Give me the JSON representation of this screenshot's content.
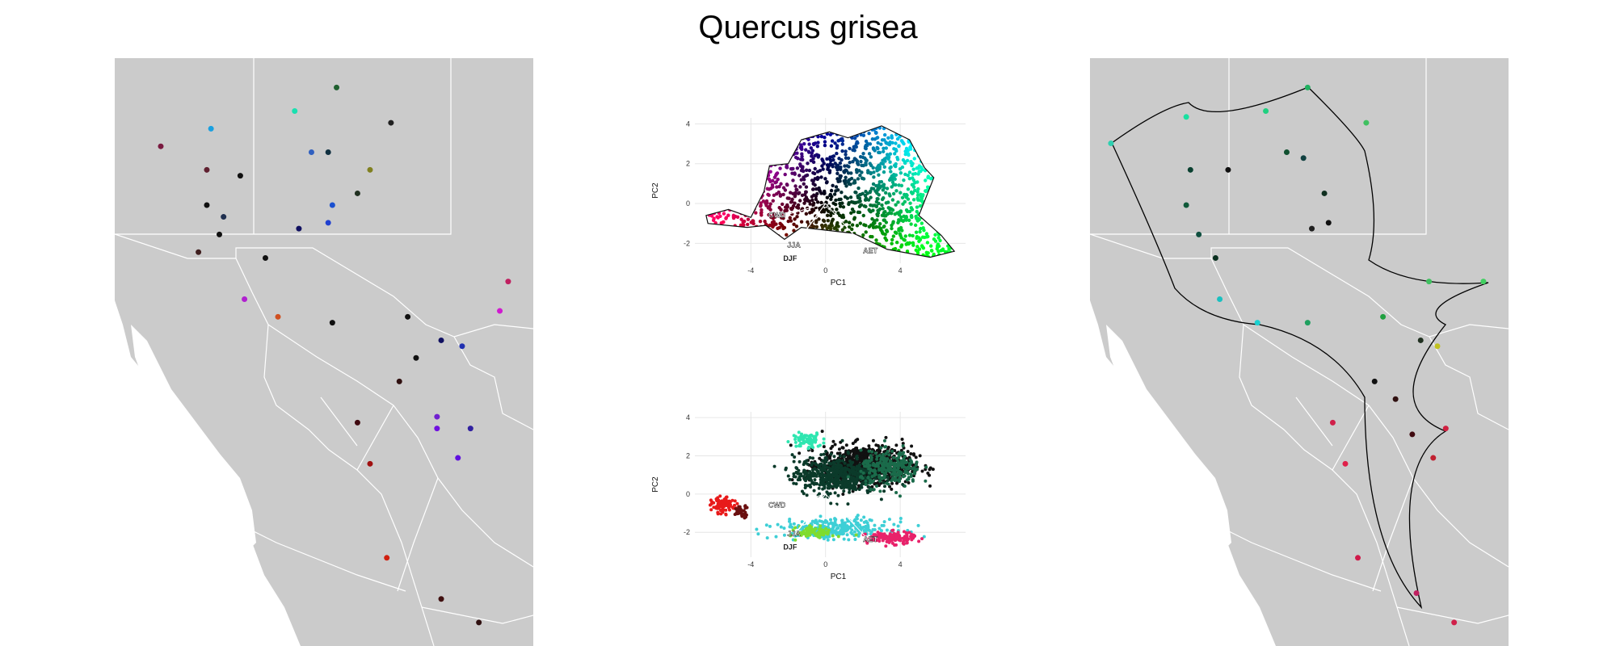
{
  "title": "Quercus grisea",
  "chart_data": [
    {
      "type": "scatter",
      "name_hint": "",
      "xlabel": "PC1",
      "ylabel": "PC2",
      "xlim": [
        -7,
        7.5
      ],
      "ylim": [
        -3,
        4.3
      ],
      "xticks": [
        -4,
        0,
        4
      ],
      "yticks": [
        -2,
        0,
        2,
        4
      ],
      "vector_labels": [
        "CWD",
        "JJA",
        "DJF",
        "AET"
      ],
      "vectors": [
        {
          "label": "CWD",
          "end": [
            -2.6,
            -0.7
          ]
        },
        {
          "label": "JJA",
          "end": [
            -1.7,
            -2.2
          ]
        },
        {
          "label": "DJF",
          "end": [
            -1.9,
            -2.4
          ]
        },
        {
          "label": "AET",
          "end": [
            2.4,
            -2.5
          ]
        }
      ],
      "hull": [
        [
          -6.4,
          -0.6
        ],
        [
          -5.2,
          -0.3
        ],
        [
          -4.0,
          -0.7
        ],
        [
          -3.3,
          0.6
        ],
        [
          -3.0,
          1.9
        ],
        [
          -2.0,
          2.0
        ],
        [
          -1.3,
          3.2
        ],
        [
          0.2,
          3.6
        ],
        [
          1.2,
          3.3
        ],
        [
          3.0,
          3.9
        ],
        [
          4.5,
          3.2
        ],
        [
          5.3,
          1.8
        ],
        [
          5.8,
          1.3
        ],
        [
          5.0,
          -0.6
        ],
        [
          6.2,
          -1.6
        ],
        [
          6.9,
          -2.4
        ],
        [
          5.6,
          -2.7
        ],
        [
          3.3,
          -2.3
        ],
        [
          1.5,
          -1.5
        ],
        [
          -1.3,
          -1.2
        ],
        [
          -2.2,
          -1.8
        ],
        [
          -3.2,
          -1.1
        ],
        [
          -4.2,
          -1.2
        ],
        [
          -6.3,
          -1.0
        ]
      ]
    },
    {
      "type": "scatter",
      "xlabel": "PC1",
      "ylabel": "PC2",
      "xlim": [
        -7,
        7.5
      ],
      "ylim": [
        -3.3,
        4.3
      ],
      "xticks": [
        -4,
        0,
        4
      ],
      "yticks": [
        -2,
        0,
        2,
        4
      ],
      "vector_labels": [
        "CWD",
        "JJA",
        "DJF",
        "AET"
      ],
      "vectors": [
        {
          "label": "CWD",
          "end": [
            -2.6,
            -0.7
          ]
        },
        {
          "label": "JJA",
          "end": [
            -1.7,
            -2.2
          ]
        },
        {
          "label": "DJF",
          "end": [
            -1.9,
            -2.4
          ]
        },
        {
          "label": "AET",
          "end": [
            2.4,
            -2.5
          ]
        }
      ],
      "clusters": [
        {
          "color": "#111111",
          "center": [
            2.2,
            1.5
          ],
          "spread": [
            2.4,
            1.0
          ],
          "n": 900
        },
        {
          "color": "#0b3a2a",
          "center": [
            0.5,
            1.0
          ],
          "spread": [
            2.2,
            1.0
          ],
          "n": 500
        },
        {
          "color": "#1a6b4a",
          "center": [
            3.5,
            1.3
          ],
          "spread": [
            1.6,
            0.9
          ],
          "n": 250
        },
        {
          "color": "#2ee6b0",
          "center": [
            -1.0,
            2.8
          ],
          "spread": [
            0.8,
            0.4
          ],
          "n": 80
        },
        {
          "color": "#3ecfd6",
          "center": [
            0.5,
            -1.8
          ],
          "spread": [
            3.0,
            0.5
          ],
          "n": 300
        },
        {
          "color": "#7fdc2e",
          "center": [
            -0.5,
            -2.0
          ],
          "spread": [
            1.0,
            0.3
          ],
          "n": 80
        },
        {
          "color": "#e8226a",
          "center": [
            3.5,
            -2.3
          ],
          "spread": [
            1.3,
            0.3
          ],
          "n": 150
        },
        {
          "color": "#e81a1a",
          "center": [
            -5.5,
            -0.6
          ],
          "spread": [
            0.6,
            0.4
          ],
          "n": 100
        },
        {
          "color": "#6b1010",
          "center": [
            -4.5,
            -0.9
          ],
          "spread": [
            0.4,
            0.3
          ],
          "n": 40
        }
      ]
    }
  ],
  "left_map_points": [
    {
      "lon": 0.11,
      "lat": 0.15,
      "color": "#7a1a40"
    },
    {
      "lon": 0.23,
      "lat": 0.12,
      "color": "#1aa0e0"
    },
    {
      "lon": 0.43,
      "lat": 0.09,
      "color": "#1ae0b0"
    },
    {
      "lon": 0.53,
      "lat": 0.05,
      "color": "#206030"
    },
    {
      "lon": 0.66,
      "lat": 0.11,
      "color": "#202020"
    },
    {
      "lon": 0.22,
      "lat": 0.19,
      "color": "#602030"
    },
    {
      "lon": 0.3,
      "lat": 0.2,
      "color": "#101010"
    },
    {
      "lon": 0.47,
      "lat": 0.16,
      "color": "#3060c0"
    },
    {
      "lon": 0.51,
      "lat": 0.16,
      "color": "#103040"
    },
    {
      "lon": 0.58,
      "lat": 0.23,
      "color": "#203020"
    },
    {
      "lon": 0.61,
      "lat": 0.19,
      "color": "#808020"
    },
    {
      "lon": 0.52,
      "lat": 0.25,
      "color": "#1a50d0"
    },
    {
      "lon": 0.26,
      "lat": 0.27,
      "color": "#203050"
    },
    {
      "lon": 0.22,
      "lat": 0.25,
      "color": "#101010"
    },
    {
      "lon": 0.44,
      "lat": 0.29,
      "color": "#101060"
    },
    {
      "lon": 0.51,
      "lat": 0.28,
      "color": "#2040d0"
    },
    {
      "lon": 0.25,
      "lat": 0.3,
      "color": "#101010"
    },
    {
      "lon": 0.2,
      "lat": 0.33,
      "color": "#402020"
    },
    {
      "lon": 0.36,
      "lat": 0.34,
      "color": "#101010"
    },
    {
      "lon": 0.94,
      "lat": 0.38,
      "color": "#c02060"
    },
    {
      "lon": 0.31,
      "lat": 0.41,
      "color": "#b020d0"
    },
    {
      "lon": 0.92,
      "lat": 0.43,
      "color": "#d01ad0"
    },
    {
      "lon": 0.39,
      "lat": 0.44,
      "color": "#d05020"
    },
    {
      "lon": 0.7,
      "lat": 0.44,
      "color": "#101010"
    },
    {
      "lon": 0.52,
      "lat": 0.45,
      "color": "#101010"
    },
    {
      "lon": 0.78,
      "lat": 0.48,
      "color": "#101060"
    },
    {
      "lon": 0.83,
      "lat": 0.49,
      "color": "#2030b0"
    },
    {
      "lon": 0.72,
      "lat": 0.51,
      "color": "#101010"
    },
    {
      "lon": 0.68,
      "lat": 0.55,
      "color": "#301010"
    },
    {
      "lon": 0.77,
      "lat": 0.61,
      "color": "#7020d0"
    },
    {
      "lon": 0.58,
      "lat": 0.62,
      "color": "#400a10"
    },
    {
      "lon": 0.77,
      "lat": 0.63,
      "color": "#7010e0"
    },
    {
      "lon": 0.85,
      "lat": 0.63,
      "color": "#3020a0"
    },
    {
      "lon": 0.82,
      "lat": 0.68,
      "color": "#6010e0"
    },
    {
      "lon": 0.61,
      "lat": 0.69,
      "color": "#a01010"
    },
    {
      "lon": 0.65,
      "lat": 0.85,
      "color": "#d02010"
    },
    {
      "lon": 0.78,
      "lat": 0.92,
      "color": "#401010"
    },
    {
      "lon": 0.87,
      "lat": 0.96,
      "color": "#301010"
    }
  ],
  "right_map_points": [
    {
      "lon": 0.05,
      "lat": 0.145,
      "color": "#2ed0b0"
    },
    {
      "lon": 0.23,
      "lat": 0.1,
      "color": "#1ae0a0"
    },
    {
      "lon": 0.42,
      "lat": 0.09,
      "color": "#20d080"
    },
    {
      "lon": 0.52,
      "lat": 0.05,
      "color": "#20b060"
    },
    {
      "lon": 0.66,
      "lat": 0.11,
      "color": "#40c060"
    },
    {
      "lon": 0.24,
      "lat": 0.19,
      "color": "#0a4030"
    },
    {
      "lon": 0.33,
      "lat": 0.19,
      "color": "#101010"
    },
    {
      "lon": 0.47,
      "lat": 0.16,
      "color": "#105030"
    },
    {
      "lon": 0.51,
      "lat": 0.17,
      "color": "#104040"
    },
    {
      "lon": 0.56,
      "lat": 0.23,
      "color": "#103020"
    },
    {
      "lon": 0.23,
      "lat": 0.25,
      "color": "#105a3a"
    },
    {
      "lon": 0.26,
      "lat": 0.3,
      "color": "#105040"
    },
    {
      "lon": 0.3,
      "lat": 0.34,
      "color": "#0a3020"
    },
    {
      "lon": 0.53,
      "lat": 0.29,
      "color": "#202020"
    },
    {
      "lon": 0.57,
      "lat": 0.28,
      "color": "#101010"
    },
    {
      "lon": 0.31,
      "lat": 0.41,
      "color": "#1ac0c0"
    },
    {
      "lon": 0.4,
      "lat": 0.45,
      "color": "#1ad0d0"
    },
    {
      "lon": 0.52,
      "lat": 0.45,
      "color": "#20a060"
    },
    {
      "lon": 0.7,
      "lat": 0.44,
      "color": "#20a040"
    },
    {
      "lon": 0.79,
      "lat": 0.48,
      "color": "#203020"
    },
    {
      "lon": 0.83,
      "lat": 0.49,
      "color": "#c0c020"
    },
    {
      "lon": 0.68,
      "lat": 0.55,
      "color": "#101010"
    },
    {
      "lon": 0.73,
      "lat": 0.58,
      "color": "#301010"
    },
    {
      "lon": 0.58,
      "lat": 0.62,
      "color": "#d0204a"
    },
    {
      "lon": 0.85,
      "lat": 0.63,
      "color": "#d02040"
    },
    {
      "lon": 0.77,
      "lat": 0.64,
      "color": "#400a10"
    },
    {
      "lon": 0.61,
      "lat": 0.69,
      "color": "#e0204a"
    },
    {
      "lon": 0.82,
      "lat": 0.68,
      "color": "#c02030"
    },
    {
      "lon": 0.64,
      "lat": 0.85,
      "color": "#d01a4a"
    },
    {
      "lon": 0.78,
      "lat": 0.91,
      "color": "#c02060"
    },
    {
      "lon": 0.87,
      "lat": 0.96,
      "color": "#d0204a"
    },
    {
      "lon": 0.94,
      "lat": 0.38,
      "color": "#40d060"
    },
    {
      "lon": 0.81,
      "lat": 0.38,
      "color": "#40c060"
    }
  ]
}
